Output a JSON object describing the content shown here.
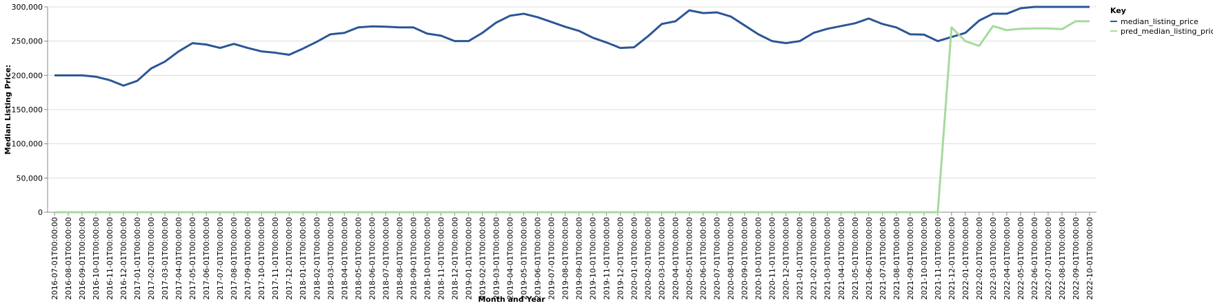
{
  "chart_data": {
    "type": "line",
    "x_label": "Month and Year",
    "y_label": "Median Listing Price:",
    "legend_title": "Key",
    "legend_position": "top-right",
    "grid": true,
    "categories": [
      "2016-07-01T00:00:00",
      "2016-08-01T00:00:00",
      "2016-09-01T00:00:00",
      "2016-10-01T00:00:00",
      "2016-11-01T00:00:00",
      "2016-12-01T00:00:00",
      "2017-01-01T00:00:00",
      "2017-02-01T00:00:00",
      "2017-03-01T00:00:00",
      "2017-04-01T00:00:00",
      "2017-05-01T00:00:00",
      "2017-06-01T00:00:00",
      "2017-07-01T00:00:00",
      "2017-08-01T00:00:00",
      "2017-09-01T00:00:00",
      "2017-10-01T00:00:00",
      "2017-11-01T00:00:00",
      "2017-12-01T00:00:00",
      "2018-01-01T00:00:00",
      "2018-02-01T00:00:00",
      "2018-03-01T00:00:00",
      "2018-04-01T00:00:00",
      "2018-05-01T00:00:00",
      "2018-06-01T00:00:00",
      "2018-07-01T00:00:00",
      "2018-08-01T00:00:00",
      "2018-09-01T00:00:00",
      "2018-10-01T00:00:00",
      "2018-11-01T00:00:00",
      "2018-12-01T00:00:00",
      "2019-01-01T00:00:00",
      "2019-02-01T00:00:00",
      "2019-03-01T00:00:00",
      "2019-04-01T00:00:00",
      "2019-05-01T00:00:00",
      "2019-06-01T00:00:00",
      "2019-07-01T00:00:00",
      "2019-08-01T00:00:00",
      "2019-09-01T00:00:00",
      "2019-10-01T00:00:00",
      "2019-11-01T00:00:00",
      "2019-12-01T00:00:00",
      "2020-01-01T00:00:00",
      "2020-02-01T00:00:00",
      "2020-03-01T00:00:00",
      "2020-04-01T00:00:00",
      "2020-05-01T00:00:00",
      "2020-06-01T00:00:00",
      "2020-07-01T00:00:00",
      "2020-08-01T00:00:00",
      "2020-09-01T00:00:00",
      "2020-10-01T00:00:00",
      "2020-11-01T00:00:00",
      "2020-12-01T00:00:00",
      "2021-01-01T00:00:00",
      "2021-02-01T00:00:00",
      "2021-03-01T00:00:00",
      "2021-04-01T00:00:00",
      "2021-05-01T00:00:00",
      "2021-06-01T00:00:00",
      "2021-07-01T00:00:00",
      "2021-08-01T00:00:00",
      "2021-09-01T00:00:00",
      "2021-10-01T00:00:00",
      "2021-11-01T00:00:00",
      "2021-12-01T00:00:00",
      "2022-01-01T00:00:00",
      "2022-02-01T00:00:00",
      "2022-03-01T00:00:00",
      "2022-04-01T00:00:00",
      "2022-05-01T00:00:00",
      "2022-06-01T00:00:00",
      "2022-07-01T00:00:00",
      "2022-08-01T00:00:00",
      "2022-09-01T00:00:00",
      "2022-10-01T00:00:00"
    ],
    "series": [
      {
        "name": "median_listing_price",
        "color": "#2b5597",
        "values": [
          200000,
          200000,
          200000,
          198000,
          193000,
          185000,
          192000,
          210000,
          220000,
          235000,
          247000,
          245000,
          240000,
          246000,
          240000,
          235000,
          233000,
          230000,
          239000,
          249000,
          260000,
          262000,
          270000,
          271500,
          271000,
          270000,
          270000,
          261000,
          258000,
          250000,
          250000,
          262000,
          277000,
          287000,
          290000,
          285000,
          278000,
          271000,
          265000,
          255000,
          248000,
          240000,
          241000,
          257000,
          275000,
          279000,
          295000,
          291000,
          292000,
          286000,
          273000,
          260000,
          250000,
          247000,
          250000,
          262000,
          268000,
          272000,
          276000,
          283000,
          275000,
          270000,
          260000,
          259500,
          250000,
          256000,
          262000,
          280000,
          290000,
          290000,
          298000,
          300000,
          300000,
          300000,
          300000,
          300000
        ]
      },
      {
        "name": "pred_median_listing_price",
        "color": "#a4db9c",
        "values": [
          0,
          0,
          0,
          0,
          0,
          0,
          0,
          0,
          0,
          0,
          0,
          0,
          0,
          0,
          0,
          0,
          0,
          0,
          0,
          0,
          0,
          0,
          0,
          0,
          0,
          0,
          0,
          0,
          0,
          0,
          0,
          0,
          0,
          0,
          0,
          0,
          0,
          0,
          0,
          0,
          0,
          0,
          0,
          0,
          0,
          0,
          0,
          0,
          0,
          0,
          0,
          0,
          0,
          0,
          0,
          0,
          0,
          0,
          0,
          0,
          0,
          0,
          0,
          0,
          0,
          270000,
          250000,
          243000,
          272000,
          266000,
          268000,
          268500,
          268500,
          267500,
          279000,
          279000
        ]
      }
    ],
    "ylim": [
      0,
      300000
    ],
    "yticks": [
      0,
      {
        "value": 50000,
        "label": "50,000"
      },
      {
        "value": 100000,
        "label": "100,000"
      },
      {
        "value": 150000,
        "label": "150,000"
      },
      {
        "value": 200000,
        "label": "200,000"
      },
      {
        "value": 250000,
        "label": "250,000"
      },
      {
        "value": 300000,
        "label": "300,000"
      }
    ]
  }
}
